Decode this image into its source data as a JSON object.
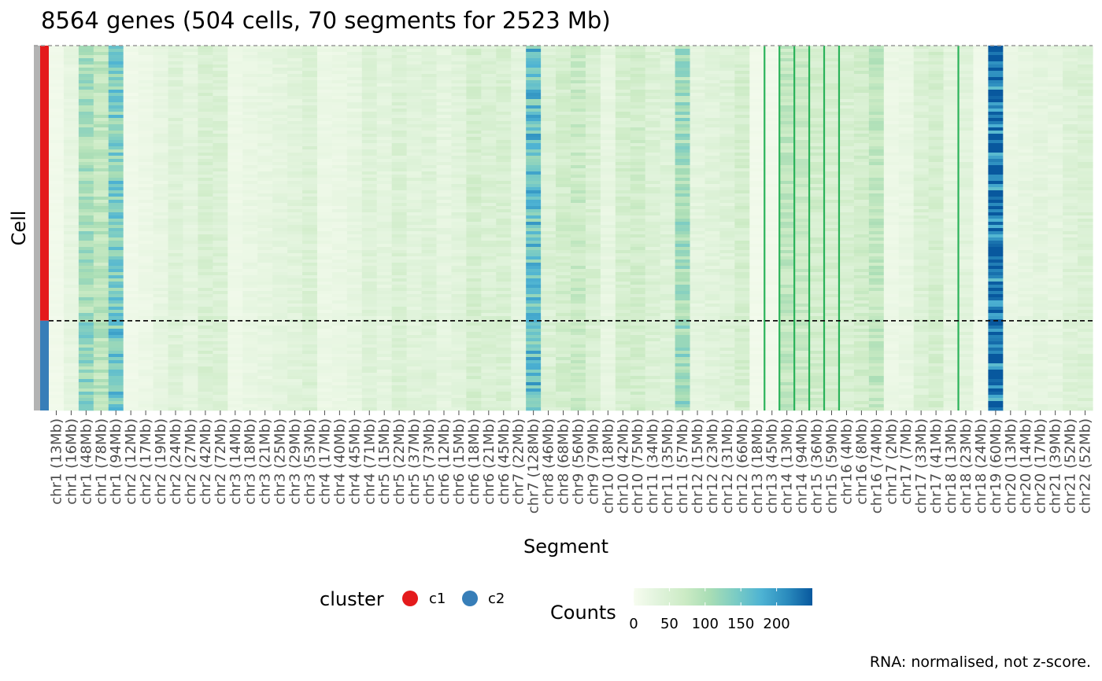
{
  "chart_data": {
    "type": "heatmap",
    "title": "8564 genes (504 cells, 70 segments for 2523 Mb)",
    "xlabel": "Segment",
    "ylabel": "Cell",
    "caption": "RNA: normalised, not z-score.",
    "segments": [
      "chr1 (13Mb)",
      "chr1 (16Mb)",
      "chr1 (48Mb)",
      "chr1 (78Mb)",
      "chr1 (94Mb)",
      "chr2 (12Mb)",
      "chr2 (17Mb)",
      "chr2 (19Mb)",
      "chr2 (24Mb)",
      "chr2 (27Mb)",
      "chr2 (42Mb)",
      "chr2 (72Mb)",
      "chr3 (14Mb)",
      "chr3 (18Mb)",
      "chr3 (21Mb)",
      "chr3 (25Mb)",
      "chr3 (29Mb)",
      "chr3 (53Mb)",
      "chr4 (17Mb)",
      "chr4 (40Mb)",
      "chr4 (45Mb)",
      "chr4 (71Mb)",
      "chr5 (15Mb)",
      "chr5 (22Mb)",
      "chr5 (37Mb)",
      "chr5 (73Mb)",
      "chr6 (12Mb)",
      "chr6 (15Mb)",
      "chr6 (18Mb)",
      "chr6 (21Mb)",
      "chr6 (45Mb)",
      "chr7 (22Mb)",
      "chr7 (128Mb)",
      "chr8 (46Mb)",
      "chr8 (68Mb)",
      "chr9 (56Mb)",
      "chr9 (79Mb)",
      "chr10 (18Mb)",
      "chr10 (42Mb)",
      "chr10 (75Mb)",
      "chr11 (34Mb)",
      "chr11 (35Mb)",
      "chr11 (57Mb)",
      "chr12 (15Mb)",
      "chr12 (23Mb)",
      "chr12 (31Mb)",
      "chr12 (66Mb)",
      "chr13 (18Mb)",
      "chr13 (45Mb)",
      "chr14 (13Mb)",
      "chr14 (94Mb)",
      "chr15 (36Mb)",
      "chr15 (59Mb)",
      "chr16 (4Mb)",
      "chr16 (8Mb)",
      "chr16 (74Mb)",
      "chr17 (2Mb)",
      "chr17 (7Mb)",
      "chr17 (33Mb)",
      "chr17 (41Mb)",
      "chr18 (13Mb)",
      "chr18 (23Mb)",
      "chr18 (24Mb)",
      "chr19 (60Mb)",
      "chr20 (13Mb)",
      "chr20 (14Mb)",
      "chr20 (17Mb)",
      "chr21 (39Mb)",
      "chr21 (52Mb)",
      "chr22 (52Mb)"
    ],
    "mean_counts_c1": [
      10,
      25,
      105,
      85,
      140,
      12,
      18,
      25,
      40,
      30,
      50,
      45,
      15,
      22,
      25,
      30,
      35,
      45,
      18,
      20,
      25,
      40,
      30,
      45,
      35,
      40,
      28,
      35,
      55,
      45,
      50,
      30,
      160,
      45,
      60,
      70,
      50,
      25,
      55,
      60,
      45,
      40,
      110,
      30,
      35,
      40,
      55,
      10,
      10,
      80,
      70,
      60,
      55,
      50,
      60,
      80,
      18,
      22,
      45,
      55,
      30,
      35,
      12,
      230,
      20,
      25,
      30,
      28,
      40,
      45
    ],
    "mean_counts_c2": [
      10,
      25,
      120,
      90,
      150,
      12,
      18,
      25,
      40,
      30,
      50,
      45,
      15,
      22,
      25,
      30,
      35,
      45,
      18,
      20,
      25,
      40,
      30,
      45,
      35,
      40,
      28,
      35,
      55,
      45,
      50,
      30,
      165,
      45,
      60,
      70,
      50,
      25,
      55,
      60,
      45,
      40,
      115,
      30,
      35,
      40,
      55,
      10,
      10,
      80,
      70,
      60,
      55,
      50,
      60,
      80,
      18,
      22,
      45,
      55,
      30,
      35,
      12,
      230,
      20,
      25,
      30,
      28,
      40,
      45
    ],
    "clusters": [
      {
        "name": "c1",
        "cells": 380,
        "color": "#E41A1C"
      },
      {
        "name": "c2",
        "cells": 124,
        "color": "#377EB8"
      }
    ],
    "total_cells": 504,
    "vertical_markers_after_segment": [
      "chr13 (18Mb)",
      "chr13 (45Mb)",
      "chr14 (13Mb)",
      "chr14 (94Mb)",
      "chr15 (36Mb)",
      "chr15 (59Mb)",
      "chr18 (13Mb)"
    ],
    "colorscale": {
      "name": "Counts",
      "min": 0,
      "max": 250,
      "ticks": [
        0,
        50,
        100,
        150,
        200
      ],
      "colors": [
        "#F7FCF0",
        "#E0F3DB",
        "#CCEBC5",
        "#A8DDB5",
        "#7BCCC4",
        "#4EB3D3",
        "#2B8CBE",
        "#08589E"
      ]
    },
    "legend": {
      "cluster_title": "cluster",
      "counts_title": "Counts",
      "placement": "bottom"
    }
  }
}
